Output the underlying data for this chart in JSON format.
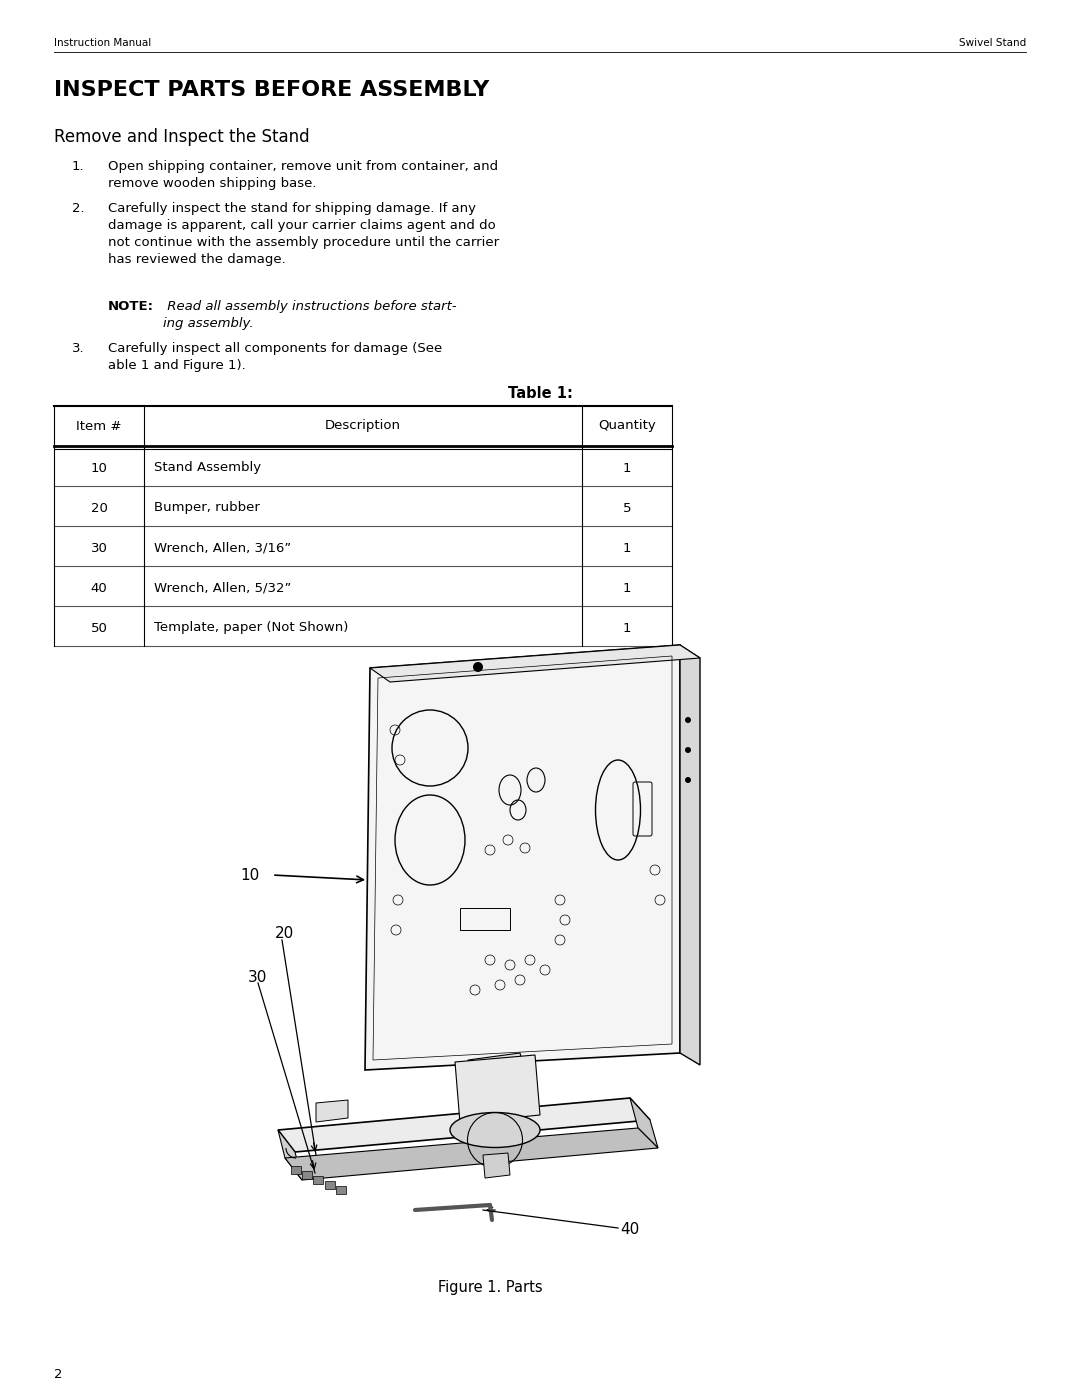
{
  "page_width": 10.8,
  "page_height": 13.97,
  "bg_color": "#ffffff",
  "header_left": "Instruction Manual",
  "header_right": "Swivel Stand",
  "header_fontsize": 7.5,
  "main_title": "INSPECT PARTS BEFORE ASSEMBLY",
  "main_title_fontsize": 16,
  "subtitle": "Remove and Inspect the Stand",
  "subtitle_fontsize": 12,
  "body_fontsize": 9.5,
  "table_title": "Table 1:",
  "table_headers": [
    "Item #",
    "Description",
    "Quantity"
  ],
  "table_rows": [
    [
      "10",
      "Stand Assembly",
      "1"
    ],
    [
      "20",
      "Bumper, rubber",
      "5"
    ],
    [
      "30",
      "Wrench, Allen, 3/16”",
      "1"
    ],
    [
      "40",
      "Wrench, Allen, 5/32”",
      "1"
    ],
    [
      "50",
      "Template, paper (Not Shown)",
      "1"
    ]
  ],
  "figure_caption": "Figure 1. Parts",
  "page_number": "2"
}
